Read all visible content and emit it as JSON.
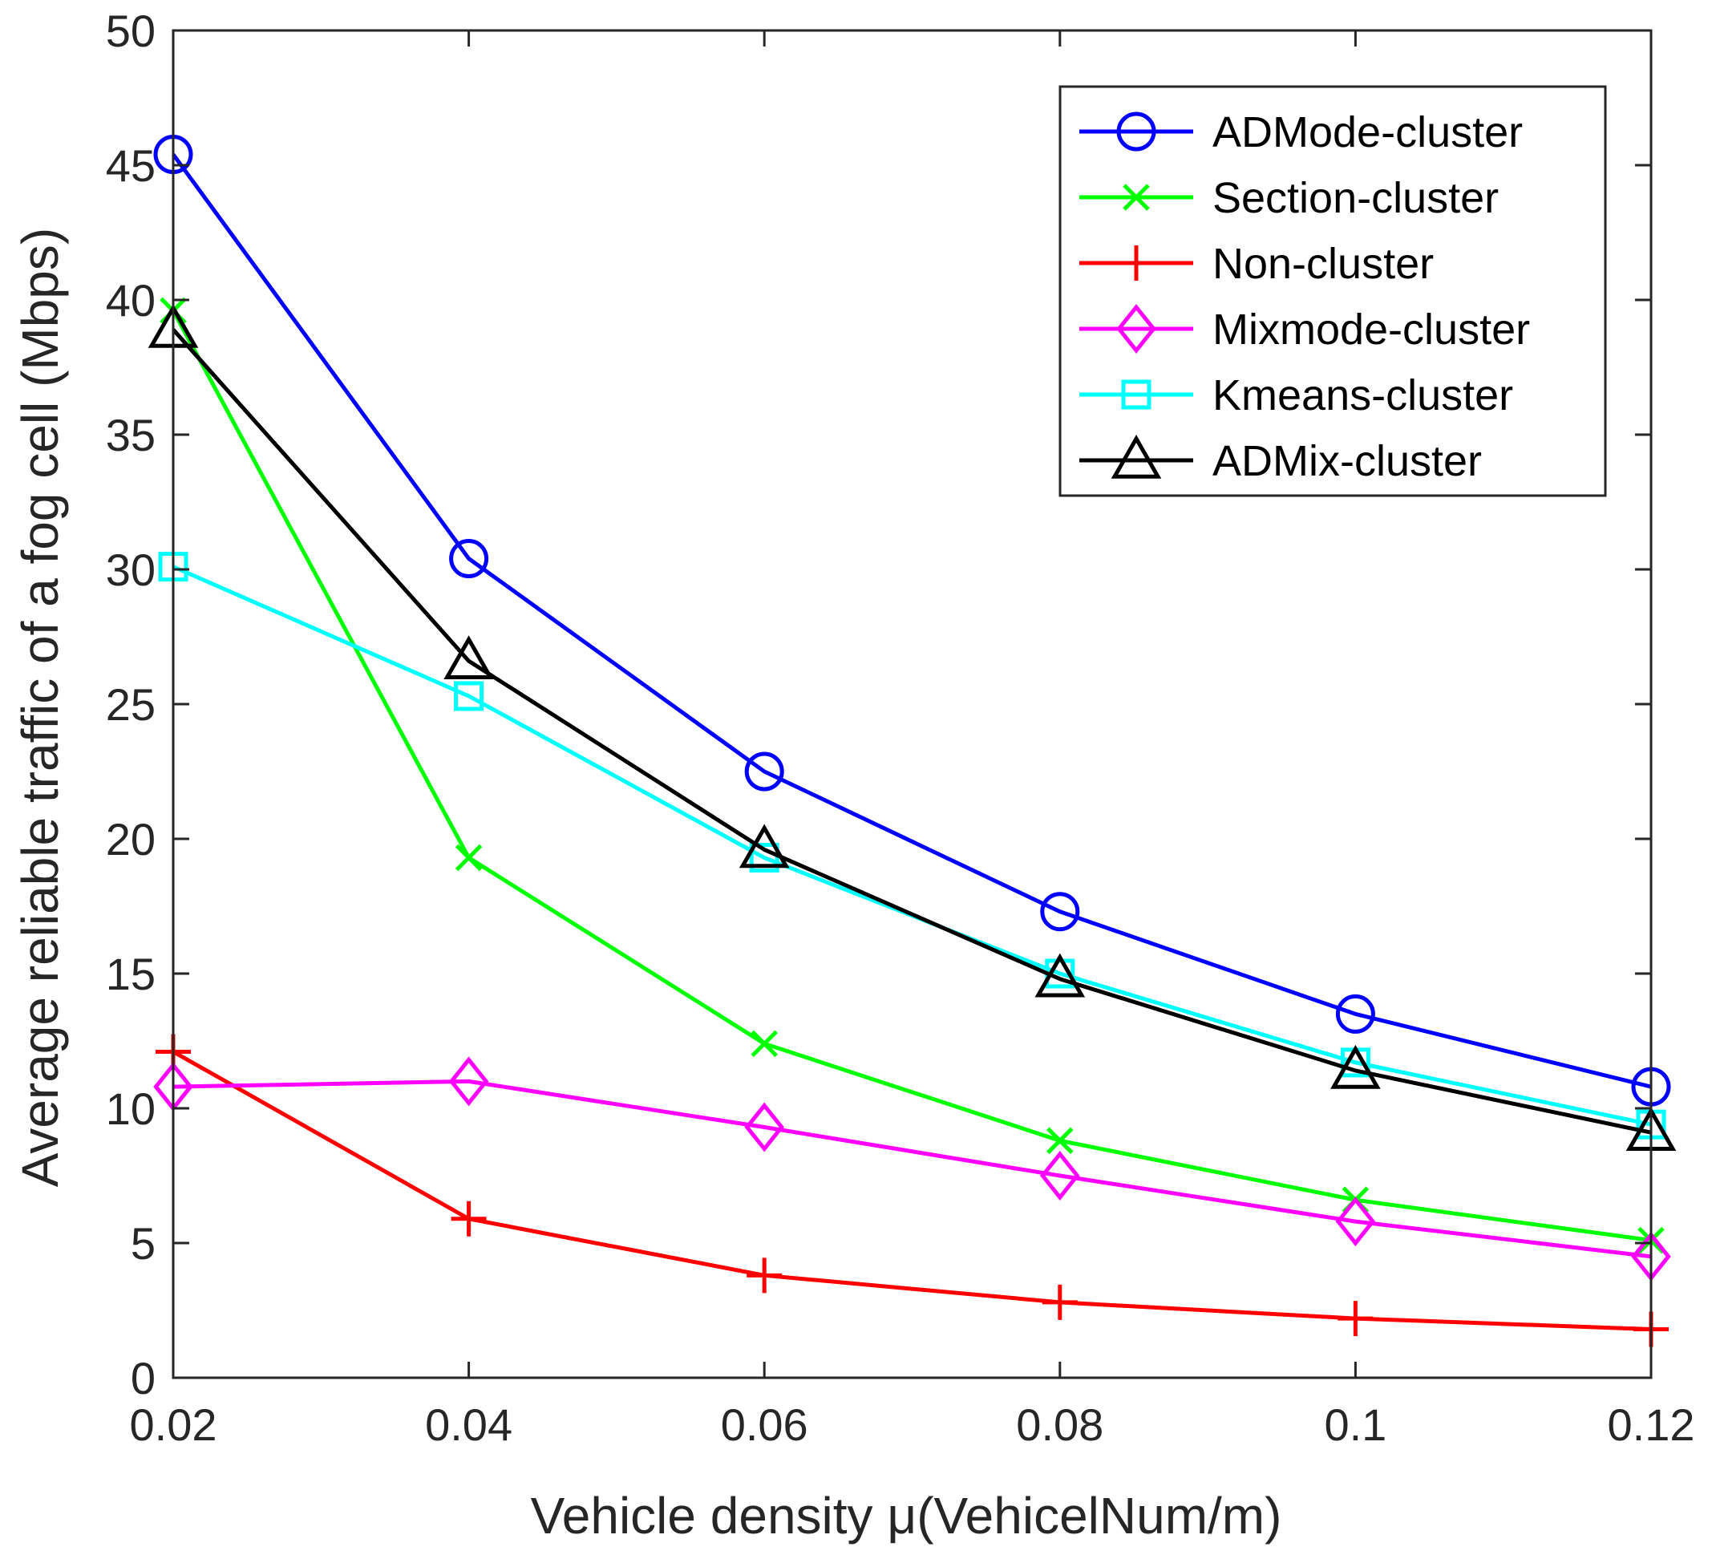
{
  "chart_data": {
    "type": "line",
    "title": "",
    "xlabel": "Vehicle density μ(VehicelNum/m)",
    "ylabel": "Average reliable traffic of a fog cell (Mbps)",
    "x": [
      0.02,
      0.04,
      0.06,
      0.08,
      0.1,
      0.12
    ],
    "x_tick_labels": [
      "0.02",
      "0.04",
      "0.06",
      "0.08",
      "0.1",
      "0.12"
    ],
    "xlim": [
      0.02,
      0.12
    ],
    "ylim": [
      0,
      50
    ],
    "y_ticks": [
      0,
      5,
      10,
      15,
      20,
      25,
      30,
      35,
      40,
      45,
      50
    ],
    "y_tick_labels": [
      "0",
      "5",
      "10",
      "15",
      "20",
      "25",
      "30",
      "35",
      "40",
      "45",
      "50"
    ],
    "grid": false,
    "legend_position": "top-right",
    "series": [
      {
        "name": "ADMode-cluster",
        "color": "#0000ff",
        "marker": "circle",
        "values": [
          45.4,
          30.4,
          22.5,
          17.3,
          13.5,
          10.8
        ]
      },
      {
        "name": "Section-cluster",
        "color": "#00ff00",
        "marker": "x",
        "values": [
          39.6,
          19.3,
          12.4,
          8.8,
          6.6,
          5.1
        ]
      },
      {
        "name": "Non-cluster",
        "color": "#ff0000",
        "marker": "plus",
        "values": [
          12.1,
          5.9,
          3.8,
          2.8,
          2.2,
          1.8
        ]
      },
      {
        "name": "Mixmode-cluster",
        "color": "#ff00ff",
        "marker": "diamond",
        "values": [
          10.8,
          11.0,
          9.3,
          7.5,
          5.8,
          4.5
        ]
      },
      {
        "name": "Kmeans-cluster",
        "color": "#00ffff",
        "marker": "square",
        "values": [
          30.1,
          25.3,
          19.3,
          15.0,
          11.7,
          9.4
        ]
      },
      {
        "name": "ADMix-cluster",
        "color": "#000000",
        "marker": "triangle",
        "values": [
          38.9,
          26.6,
          19.6,
          14.8,
          11.4,
          9.1
        ]
      }
    ]
  }
}
